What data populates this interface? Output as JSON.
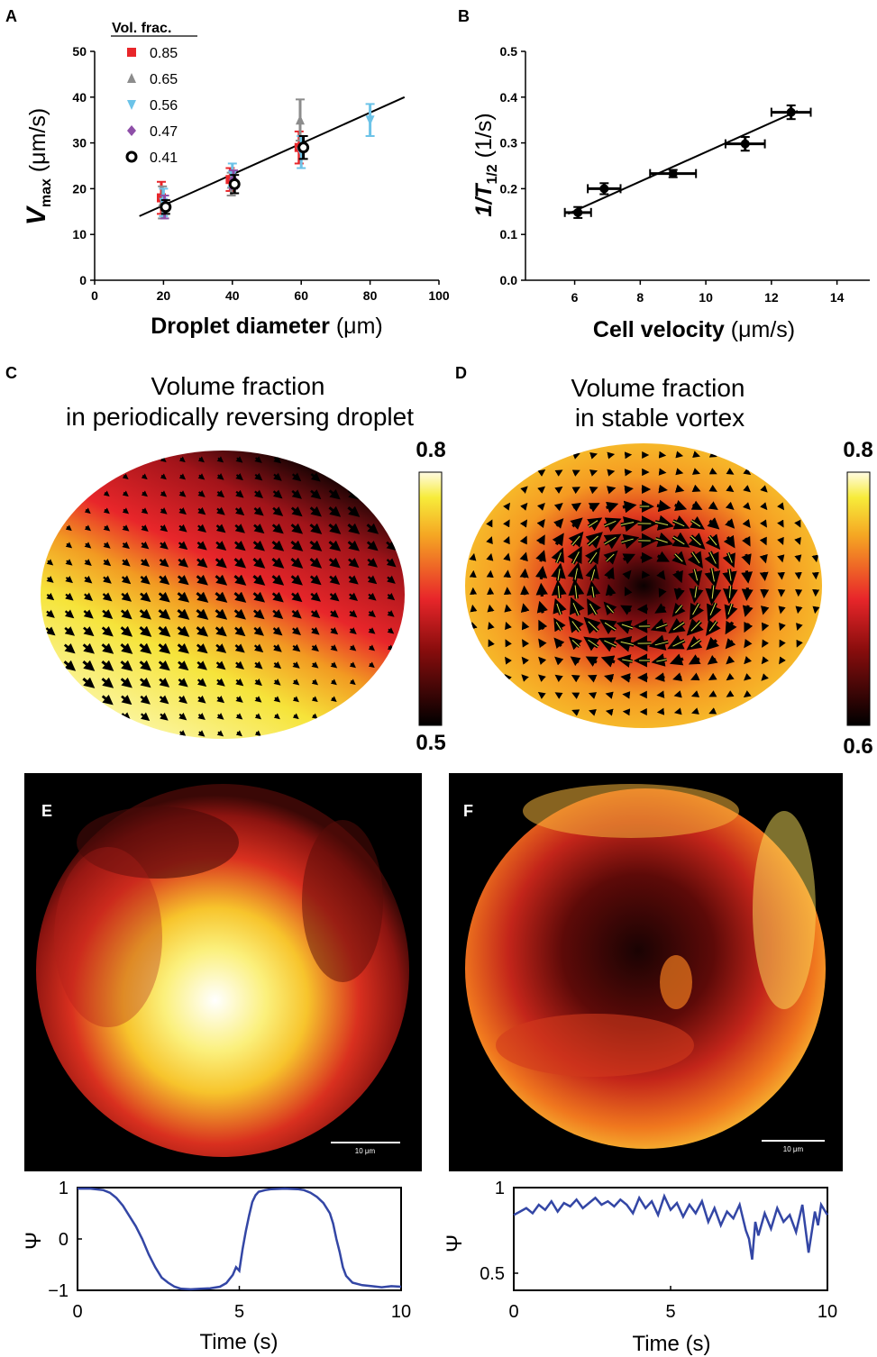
{
  "chart_data": [
    {
      "panel": "A",
      "type": "scatter",
      "xlabel_main": "Droplet diameter",
      "xlabel_unit": "(μm)",
      "ylabel_main": "V",
      "ylabel_sub": "max",
      "ylabel_unit": "(μm/s)",
      "xlim": [
        0,
        100
      ],
      "ylim": [
        0,
        50
      ],
      "xticks": [
        0,
        20,
        40,
        60,
        80,
        100
      ],
      "yticks": [
        0,
        10,
        20,
        30,
        40,
        50
      ],
      "legend_title": "Vol. frac.",
      "series": [
        {
          "name": "0.85",
          "color": "#e8262a",
          "marker": "square",
          "x": [
            20,
            40,
            60
          ],
          "y": [
            18,
            22,
            29
          ],
          "err": [
            3.5,
            2.5,
            3.5
          ]
        },
        {
          "name": "0.65",
          "color": "#8c8c8c",
          "marker": "triangle-up",
          "x": [
            20,
            40,
            60
          ],
          "y": [
            17,
            21,
            35
          ],
          "err": [
            3.5,
            2.5,
            4.5
          ]
        },
        {
          "name": "0.56",
          "color": "#6cc3e8",
          "marker": "triangle-down",
          "x": [
            20,
            40,
            60,
            80
          ],
          "y": [
            17,
            23,
            28,
            35
          ],
          "err": [
            3,
            2.5,
            3.5,
            3.5
          ]
        },
        {
          "name": "0.47",
          "color": "#8e4fa8",
          "marker": "diamond",
          "x": [
            20,
            40
          ],
          "y": [
            16,
            22
          ],
          "err": [
            2.5,
            2
          ]
        },
        {
          "name": "0.41",
          "color": "#000000",
          "marker": "circle-open",
          "x": [
            20,
            40,
            60
          ],
          "y": [
            16,
            21,
            29
          ],
          "err": [
            1.5,
            2,
            2.5
          ]
        }
      ],
      "fit": {
        "x": [
          13,
          90
        ],
        "y": [
          14,
          40
        ]
      }
    },
    {
      "panel": "B",
      "type": "scatter",
      "xlabel_main": "Cell velocity",
      "xlabel_unit": "(μm/s)",
      "ylabel_main": "1/T",
      "ylabel_sub": "1/2",
      "ylabel_unit": "(1/s)",
      "xlim": [
        4.5,
        15
      ],
      "ylim": [
        0,
        0.5
      ],
      "xticks": [
        6,
        8,
        10,
        12,
        14
      ],
      "ytick_labels": [
        "0.0",
        "0.1",
        "0.2",
        "0.3",
        "0.4",
        "0.5"
      ],
      "points": [
        {
          "x": 6.1,
          "y": 0.148,
          "xerr": 0.4,
          "yerr": 0.012
        },
        {
          "x": 6.9,
          "y": 0.2,
          "xerr": 0.5,
          "yerr": 0.012
        },
        {
          "x": 9.0,
          "y": 0.233,
          "xerr": 0.7,
          "yerr": 0.008
        },
        {
          "x": 11.2,
          "y": 0.298,
          "xerr": 0.6,
          "yerr": 0.015
        },
        {
          "x": 12.6,
          "y": 0.367,
          "xerr": 0.6,
          "yerr": 0.015
        }
      ],
      "fit": {
        "x": [
          5.8,
          12.8
        ],
        "y": [
          0.145,
          0.37
        ]
      }
    },
    {
      "panel": "C",
      "type": "heatmap",
      "title_line1": "Volume fraction",
      "title_line2": "in periodically reversing droplet",
      "colorbar_max": "0.8",
      "colorbar_min": "0.5"
    },
    {
      "panel": "D",
      "type": "heatmap",
      "title_line1": "Volume fraction",
      "title_line2": "in stable vortex",
      "colorbar_max": "0.8",
      "colorbar_min": "0.6"
    },
    {
      "panel": "E",
      "type": "line",
      "scalebar_label": "10 μm",
      "xlabel": "Time (s)",
      "ylabel": "Ψ",
      "xlim": [
        0,
        10
      ],
      "ylim": [
        -1,
        1
      ],
      "xticks": [
        0,
        5,
        10
      ],
      "yticks": [
        -1,
        0,
        1
      ],
      "ytick_labels": [
        "−1",
        "0",
        "1"
      ],
      "series": [
        {
          "color": "#3346a5",
          "x": [
            0,
            0.4,
            0.8,
            1.0,
            1.2,
            1.4,
            1.6,
            1.8,
            2.0,
            2.2,
            2.4,
            2.6,
            2.8,
            3.0,
            3.2,
            3.5,
            3.8,
            4.1,
            4.4,
            4.6,
            4.8,
            4.9,
            5.0,
            5.1,
            5.2,
            5.3,
            5.4,
            5.5,
            5.6,
            5.8,
            6.0,
            6.4,
            6.8,
            7.0,
            7.2,
            7.4,
            7.6,
            7.8,
            7.9,
            8.0,
            8.1,
            8.2,
            8.3,
            8.5,
            8.8,
            9.1,
            9.4,
            9.7,
            10
          ],
          "y": [
            0.98,
            0.98,
            0.95,
            0.9,
            0.8,
            0.65,
            0.45,
            0.25,
            0.0,
            -0.3,
            -0.55,
            -0.75,
            -0.85,
            -0.93,
            -0.97,
            -0.98,
            -0.97,
            -0.96,
            -0.93,
            -0.86,
            -0.7,
            -0.55,
            -0.62,
            -0.2,
            0.15,
            0.45,
            0.72,
            0.85,
            0.92,
            0.95,
            0.97,
            0.98,
            0.97,
            0.95,
            0.9,
            0.82,
            0.7,
            0.5,
            0.3,
            0.0,
            -0.25,
            -0.55,
            -0.72,
            -0.85,
            -0.9,
            -0.92,
            -0.94,
            -0.92,
            -0.93
          ]
        }
      ]
    },
    {
      "panel": "F",
      "type": "line",
      "scalebar_label": "10 μm",
      "xlabel": "Time (s)",
      "ylabel": "Ψ",
      "xlim": [
        0,
        10
      ],
      "ylim": [
        0.4,
        1.0
      ],
      "xticks": [
        0,
        5,
        10
      ],
      "yticks": [
        0.5,
        1.0
      ],
      "ytick_labels": [
        "0.5",
        "1"
      ],
      "series": [
        {
          "color": "#3346a5",
          "x": [
            0,
            0.2,
            0.4,
            0.6,
            0.8,
            1.0,
            1.2,
            1.4,
            1.6,
            1.8,
            2.0,
            2.2,
            2.4,
            2.6,
            2.8,
            3.0,
            3.2,
            3.4,
            3.6,
            3.8,
            4.0,
            4.2,
            4.4,
            4.6,
            4.8,
            5.0,
            5.2,
            5.4,
            5.6,
            5.8,
            6.0,
            6.2,
            6.4,
            6.6,
            6.8,
            7.0,
            7.2,
            7.4,
            7.5,
            7.6,
            7.7,
            7.8,
            8.0,
            8.2,
            8.4,
            8.6,
            8.8,
            9.0,
            9.2,
            9.4,
            9.6,
            9.7,
            9.8,
            10
          ],
          "y": [
            0.84,
            0.86,
            0.88,
            0.85,
            0.9,
            0.87,
            0.92,
            0.86,
            0.91,
            0.89,
            0.93,
            0.88,
            0.91,
            0.94,
            0.9,
            0.92,
            0.89,
            0.93,
            0.9,
            0.85,
            0.94,
            0.88,
            0.92,
            0.84,
            0.95,
            0.87,
            0.91,
            0.83,
            0.9,
            0.85,
            0.92,
            0.8,
            0.88,
            0.78,
            0.86,
            0.82,
            0.9,
            0.75,
            0.7,
            0.58,
            0.8,
            0.72,
            0.85,
            0.76,
            0.88,
            0.8,
            0.84,
            0.74,
            0.9,
            0.62,
            0.86,
            0.78,
            0.9,
            0.84
          ]
        }
      ]
    }
  ]
}
